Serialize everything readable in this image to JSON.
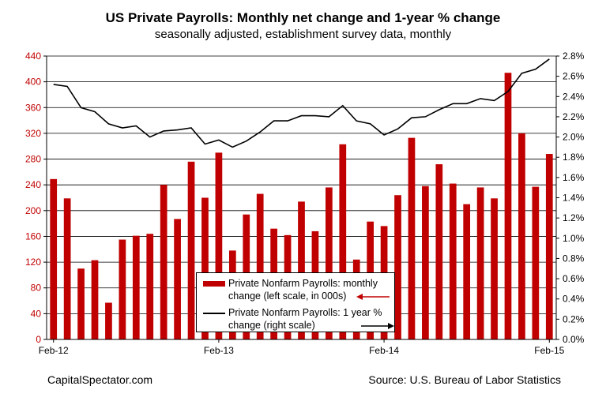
{
  "title": "US Private Payrolls: Monthly net change and 1-year % change",
  "subtitle": "seasonally adjusted, establishment survey data, monthly",
  "footer": {
    "left": "CapitalSpectator.com",
    "right": "Source: U.S. Bureau of Labor Statistics"
  },
  "legend": {
    "bars_line1": "Private Nonfarm Payrolls: monthly",
    "bars_line2": "change (left scale, in 000s)",
    "line_line1": "Private Nonfarm Payrolls:  1 year %",
    "line_line2": "change (right scale)"
  },
  "colors": {
    "bar": "#c00000",
    "line": "#000000",
    "arrow": "#c00000"
  },
  "chart_data": {
    "type": "bar",
    "title": "US Private Payrolls: Monthly net change and 1-year % change",
    "x_tick_labels": [
      "Feb-12",
      "Feb-13",
      "Feb-14",
      "Feb-15"
    ],
    "left_axis": {
      "ylim": [
        0,
        440
      ],
      "ticks": [
        "0",
        "40",
        "80",
        "120",
        "160",
        "200",
        "240",
        "280",
        "320",
        "360",
        "400",
        "440"
      ]
    },
    "right_axis": {
      "ylim": [
        0.0,
        2.8
      ],
      "ticks": [
        "0.0%",
        "0.2%",
        "0.4%",
        "0.6%",
        "0.8%",
        "1.0%",
        "1.2%",
        "1.4%",
        "1.6%",
        "1.8%",
        "2.0%",
        "2.2%",
        "2.4%",
        "2.6%",
        "2.8%"
      ]
    },
    "grid": true,
    "series": [
      {
        "name": "Private Nonfarm Payrolls: monthly change (left scale, in 000s)",
        "type": "bar",
        "axis": "left",
        "values": [
          249,
          219,
          110,
          123,
          57,
          155,
          161,
          164,
          240,
          187,
          276,
          220,
          290,
          138,
          194,
          226,
          172,
          162,
          214,
          168,
          236,
          303,
          124,
          183,
          176,
          224,
          313,
          238,
          272,
          242,
          210,
          236,
          219,
          414,
          320,
          237,
          288
        ]
      },
      {
        "name": "Private Nonfarm Payrolls:  1 year % change (right scale)",
        "type": "line",
        "axis": "right",
        "values": [
          2.52,
          2.5,
          2.29,
          2.25,
          2.13,
          2.09,
          2.11,
          2.0,
          2.06,
          2.07,
          2.09,
          1.93,
          1.97,
          1.9,
          1.96,
          2.05,
          2.16,
          2.16,
          2.21,
          2.21,
          2.2,
          2.31,
          2.16,
          2.13,
          2.02,
          2.08,
          2.19,
          2.2,
          2.27,
          2.33,
          2.33,
          2.38,
          2.36,
          2.45,
          2.63,
          2.67,
          2.77
        ]
      }
    ],
    "legend_position": "bottom-center"
  }
}
